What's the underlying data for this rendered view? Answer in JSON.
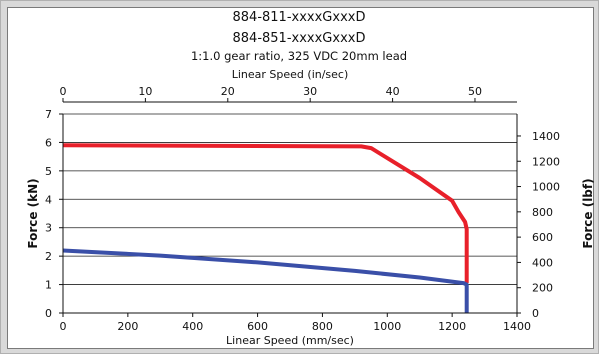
{
  "chart_data": {
    "type": "line",
    "title": [
      "884-811-xxxxGxxxD",
      "884-851-xxxxGxxxD",
      "1:1.0 gear ratio, 325 VDC 20mm lead"
    ],
    "xlabel": "Linear Speed (mm/sec)",
    "x2label": "Linear Speed (in/sec)",
    "ylabel": "Force (kN)",
    "y2label": "Force (lbf)",
    "xlim": [
      0,
      1400
    ],
    "x2lim": [
      0,
      55.1
    ],
    "ylim": [
      0,
      7
    ],
    "y2lim": [
      0,
      1573.7
    ],
    "xticks": [
      0,
      200,
      400,
      600,
      800,
      1000,
      1200,
      1400
    ],
    "x2ticks": [
      0,
      10,
      20,
      30,
      40,
      50
    ],
    "yticks": [
      0,
      1,
      2,
      3,
      4,
      5,
      6,
      7
    ],
    "y2ticks": [
      0,
      200,
      400,
      600,
      800,
      1000,
      1200,
      1400
    ],
    "grid": true,
    "series": [
      {
        "color": "#e8202a",
        "x": [
          0,
          920,
          950,
          1000,
          1100,
          1200,
          1220,
          1240,
          1245,
          1245
        ],
        "y": [
          5.9,
          5.86,
          5.8,
          5.45,
          4.75,
          3.95,
          3.55,
          3.2,
          2.95,
          1.05
        ]
      },
      {
        "color": "#3a4fa8",
        "x": [
          0,
          300,
          600,
          900,
          1100,
          1235,
          1245,
          1245
        ],
        "y": [
          2.2,
          2.02,
          1.78,
          1.48,
          1.25,
          1.05,
          1.0,
          0.0
        ]
      }
    ]
  }
}
